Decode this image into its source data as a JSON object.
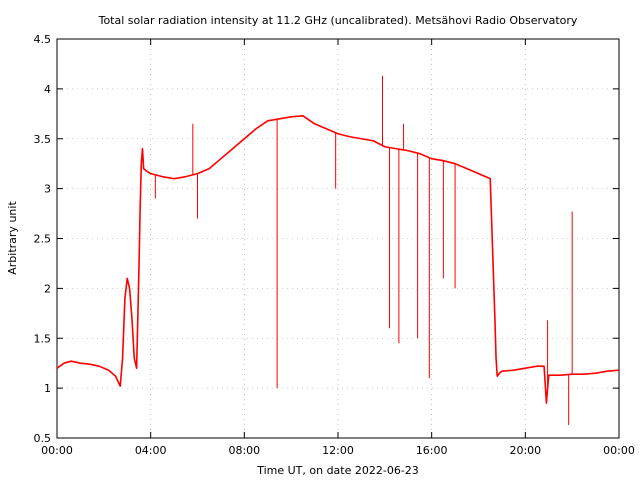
{
  "chart_data": {
    "type": "line",
    "title": "Total solar radiation intensity at 11.2 GHz (uncalibrated). Metsähovi Radio Observatory",
    "xlabel": "Time UT, on date 2022-06-23",
    "ylabel": "Arbitrary unit",
    "xlim": [
      0,
      24
    ],
    "ylim": [
      0.5,
      4.5
    ],
    "xticks": [
      0,
      4,
      8,
      12,
      16,
      20,
      24
    ],
    "xtick_labels": [
      "00:00",
      "04:00",
      "08:00",
      "12:00",
      "16:00",
      "20:00",
      "00:00"
    ],
    "yticks": [
      0.5,
      1,
      1.5,
      2,
      2.5,
      3,
      3.5,
      4,
      4.5
    ],
    "ytick_labels": [
      "0.5",
      "1",
      "1.5",
      "2",
      "2.5",
      "3",
      "3.5",
      "4",
      "4.5"
    ],
    "grid": true,
    "line_color": "#ff0000",
    "series": [
      {
        "x": [
          0,
          0.3,
          0.6,
          1.0,
          1.4,
          1.8,
          2.2,
          2.5,
          2.7,
          2.8,
          2.9,
          3.0,
          3.1,
          3.2,
          3.3,
          3.4,
          3.5,
          3.55,
          3.6,
          3.65,
          3.7,
          3.8,
          4.0,
          4.5,
          5.0,
          5.5,
          6.0,
          6.5,
          7.0,
          7.5,
          8.0,
          8.5,
          9.0,
          9.5,
          10.0,
          10.5,
          11.0,
          11.5,
          12.0,
          12.5,
          13.0,
          13.5,
          14.0,
          14.5,
          15.0,
          15.5,
          16.0,
          16.5,
          17.0,
          17.5,
          18.0,
          18.5,
          18.6,
          18.7,
          18.75,
          18.8,
          18.9,
          19.0,
          19.5,
          20.0,
          20.5,
          20.8,
          20.9,
          21.0,
          21.5,
          22.0,
          22.5,
          23.0,
          23.5,
          24.0
        ],
        "y": [
          1.2,
          1.25,
          1.27,
          1.25,
          1.24,
          1.22,
          1.18,
          1.12,
          1.02,
          1.3,
          1.9,
          2.1,
          2.0,
          1.7,
          1.3,
          1.2,
          2.2,
          2.8,
          3.25,
          3.4,
          3.2,
          3.18,
          3.15,
          3.12,
          3.1,
          3.12,
          3.15,
          3.2,
          3.3,
          3.4,
          3.5,
          3.6,
          3.68,
          3.7,
          3.72,
          3.73,
          3.65,
          3.6,
          3.55,
          3.52,
          3.5,
          3.48,
          3.42,
          3.4,
          3.38,
          3.35,
          3.3,
          3.28,
          3.25,
          3.2,
          3.15,
          3.1,
          2.4,
          1.7,
          1.3,
          1.12,
          1.15,
          1.17,
          1.18,
          1.2,
          1.22,
          1.22,
          0.85,
          1.13,
          1.13,
          1.14,
          1.14,
          1.15,
          1.17,
          1.18
        ]
      }
    ],
    "spikes": [
      {
        "x": 9.4,
        "y": 1.0
      },
      {
        "x": 9.45,
        "y": 3.7
      },
      {
        "x": 13.9,
        "y": 4.13
      },
      {
        "x": 14.2,
        "y": 1.6
      },
      {
        "x": 14.6,
        "y": 1.45
      },
      {
        "x": 14.8,
        "y": 3.65
      },
      {
        "x": 15.4,
        "y": 1.5
      },
      {
        "x": 15.9,
        "y": 1.1
      },
      {
        "x": 16.5,
        "y": 2.1
      },
      {
        "x": 17.0,
        "y": 2.0
      },
      {
        "x": 20.95,
        "y": 1.68
      },
      {
        "x": 21.85,
        "y": 0.63
      },
      {
        "x": 22.0,
        "y": 2.77
      },
      {
        "x": 5.8,
        "y": 3.65
      },
      {
        "x": 4.2,
        "y": 2.9
      },
      {
        "x": 6.0,
        "y": 2.7
      },
      {
        "x": 11.9,
        "y": 3.0
      }
    ]
  }
}
